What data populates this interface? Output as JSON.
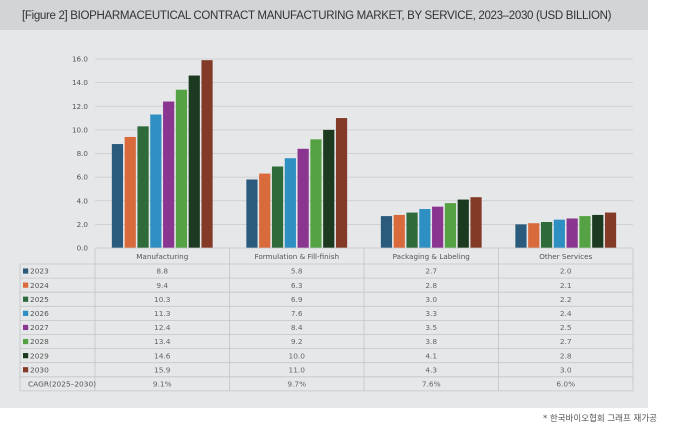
{
  "title": "[Figure 2] BIOPHARMACEUTICAL CONTRACT MANUFACTURING MARKET, BY SERVICE, 2023–2030 (USD BILLION)",
  "footnote": "* 한국바이오협회 그래프 재가공",
  "chart_data": {
    "type": "bar",
    "title": "[Figure 2] BIOPHARMACEUTICAL CONTRACT MANUFACTURING MARKET, BY SERVICE, 2023–2030 (USD BILLION)",
    "xlabel": "",
    "ylabel": "",
    "ylim": [
      0,
      16
    ],
    "yticks": [
      "0.0",
      "2.0",
      "4.0",
      "6.0",
      "8.0",
      "10.0",
      "12.0",
      "14.0",
      "16.0"
    ],
    "grid": true,
    "legend": "data-table-left",
    "categories": [
      "Manufacturing",
      "Formulation & Fill-finish",
      "Packaging & Labeling",
      "Other Services"
    ],
    "series": [
      {
        "name": "2023",
        "color": "#2a5b7c",
        "values": [
          8.8,
          5.8,
          2.7,
          2.0
        ]
      },
      {
        "name": "2024",
        "color": "#d96a3b",
        "values": [
          9.4,
          6.3,
          2.8,
          2.1
        ]
      },
      {
        "name": "2025",
        "color": "#2f6a3a",
        "values": [
          10.3,
          6.9,
          3.0,
          2.2
        ]
      },
      {
        "name": "2026",
        "color": "#2e8fc2",
        "values": [
          11.3,
          7.6,
          3.3,
          2.4
        ]
      },
      {
        "name": "2027",
        "color": "#8a3590",
        "values": [
          12.4,
          8.4,
          3.5,
          2.5
        ]
      },
      {
        "name": "2028",
        "color": "#55a244",
        "values": [
          13.4,
          9.2,
          3.8,
          2.7
        ]
      },
      {
        "name": "2029",
        "color": "#1b3a20",
        "values": [
          14.6,
          10.0,
          4.1,
          2.8
        ]
      },
      {
        "name": "2030",
        "color": "#833b28",
        "values": [
          15.9,
          11.0,
          4.3,
          3.0
        ]
      }
    ],
    "table_value_labels": [
      [
        "8.8",
        "5.8",
        "2.7",
        "2.0"
      ],
      [
        "9.4",
        "6.3",
        "2.8",
        "2.1"
      ],
      [
        "10.3",
        "6.9",
        "3.0",
        "2.2"
      ],
      [
        "11.3",
        "7.6",
        "3.3",
        "2.4"
      ],
      [
        "12.4",
        "8.4",
        "3.5",
        "2.5"
      ],
      [
        "13.4",
        "9.2",
        "3.8",
        "2.7"
      ],
      [
        "14.6",
        "10.0",
        "4.1",
        "2.8"
      ],
      [
        "15.9",
        "11.0",
        "4.3",
        "3.0"
      ]
    ],
    "cagr": {
      "label": "CAGR(2025–2030)",
      "values": [
        "9.1%",
        "9.7%",
        "7.6%",
        "6.0%"
      ]
    }
  }
}
